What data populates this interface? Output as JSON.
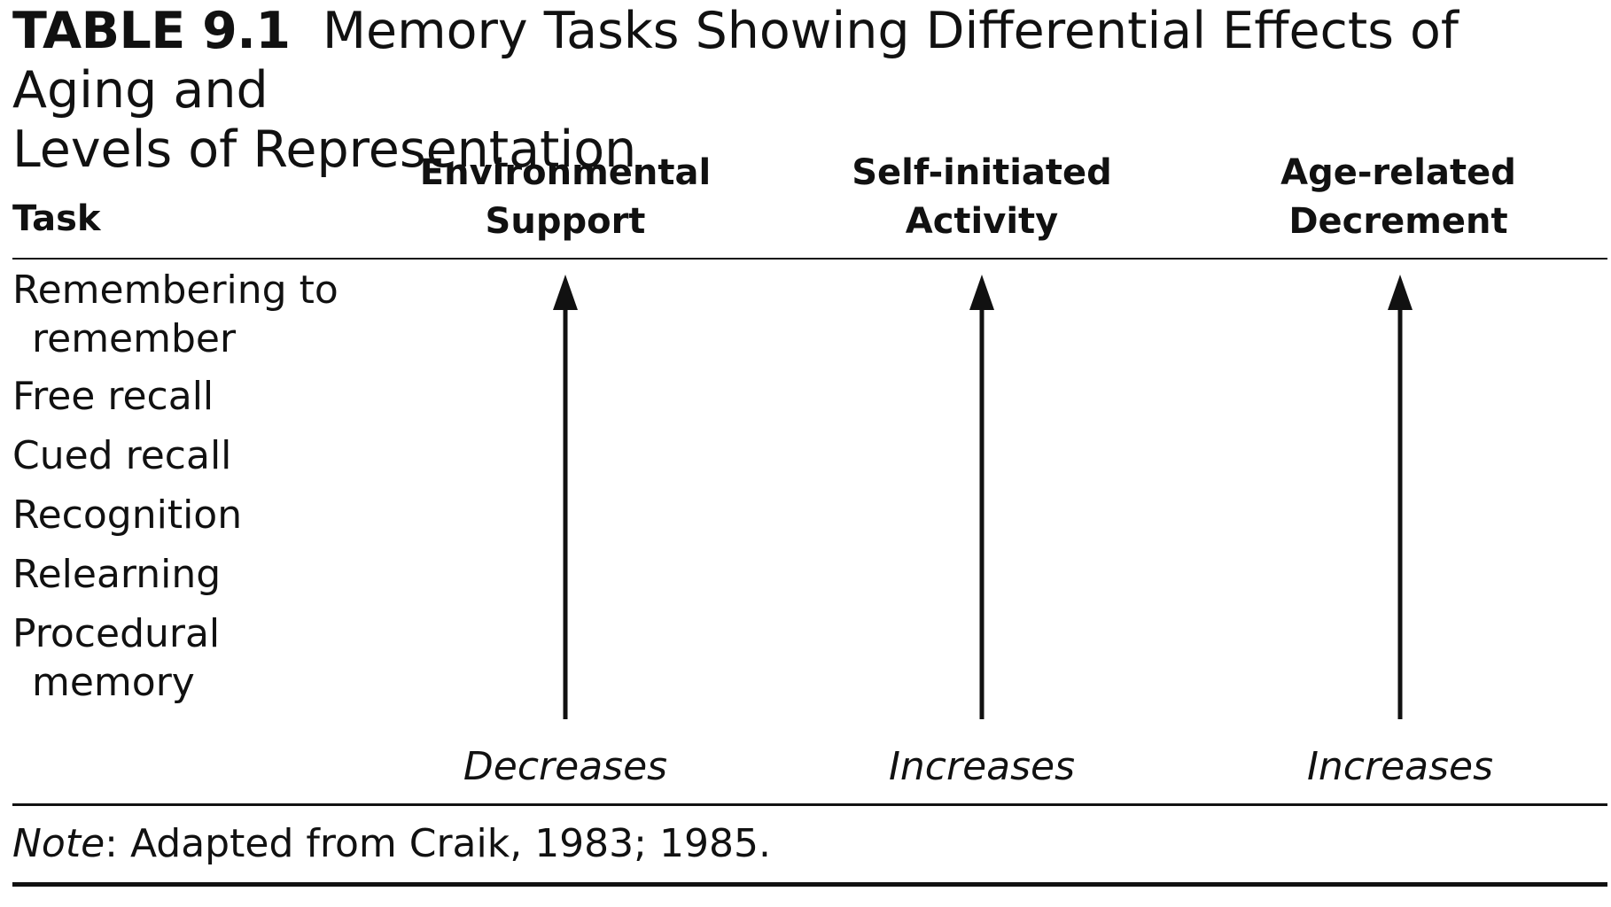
{
  "title": {
    "label": "TABLE 9.1",
    "text": "Memory Tasks Showing Differential Effects of Aging and",
    "text_line2": "Levels of Representation"
  },
  "headers": {
    "task": "Task",
    "columns": [
      {
        "line1": "Environmental",
        "line2": "Support",
        "trend": "Decreases"
      },
      {
        "line1": "Self-initiated",
        "line2": "Activity",
        "trend": "Increases"
      },
      {
        "line1": "Age-related",
        "line2": "Decrement",
        "trend": "Increases"
      }
    ]
  },
  "tasks": [
    {
      "line1": "Remembering to",
      "line2": "remember"
    },
    {
      "line1": "Free recall"
    },
    {
      "line1": "Cued recall"
    },
    {
      "line1": "Recognition"
    },
    {
      "line1": "Relearning"
    },
    {
      "line1": "Procedural",
      "line2": "memory"
    }
  ],
  "note": {
    "label": "Note",
    "text": ": Adapted from Craik, 1983; 1985."
  },
  "colors": {
    "ink": "#111111",
    "background": "#ffffff"
  },
  "icons": [
    "arrow-up-icon"
  ]
}
